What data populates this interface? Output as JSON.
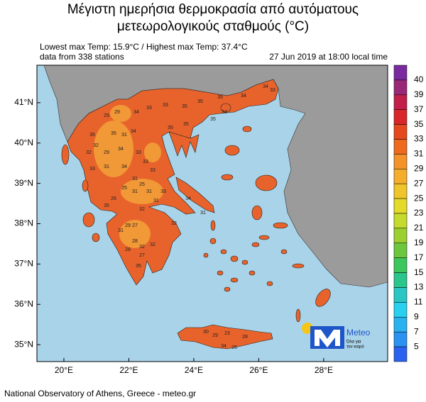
{
  "title": [
    "Μέγιστη ημερήσια θερμοκρασία από αυτόματους",
    "μετεωρολογικούς σταθμούς (°C)"
  ],
  "info": {
    "extremes": "Lowest max Temp: 15.9°C / Highest max Temp: 37.4°C",
    "stations": "data from 338 stations",
    "time": "27 Jun 2019 at 18:00 local time"
  },
  "map": {
    "lonlim": [
      19.17,
      29.97
    ],
    "latlim": [
      34.58,
      41.93
    ],
    "lonticks": [
      {
        "value": 20,
        "label": "20°E"
      },
      {
        "value": 22,
        "label": "22°E"
      },
      {
        "value": 24,
        "label": "24°E"
      },
      {
        "value": 26,
        "label": "26°E"
      },
      {
        "value": 28,
        "label": "28°E"
      }
    ],
    "latticks": [
      {
        "value": 41,
        "label": "41°N"
      },
      {
        "value": 40,
        "label": "40°N"
      },
      {
        "value": 39,
        "label": "39°N"
      },
      {
        "value": 38,
        "label": "38°N"
      },
      {
        "value": 37,
        "label": "37°N"
      },
      {
        "value": 36,
        "label": "36°N"
      },
      {
        "value": 35,
        "label": "35°N"
      }
    ],
    "stations": [
      34,
      33,
      34,
      35,
      35,
      35,
      33,
      33,
      34,
      29,
      29,
      34,
      31,
      35,
      35,
      35,
      35,
      34,
      35,
      32,
      32,
      29,
      34,
      33,
      33,
      33,
      33,
      31,
      34,
      31,
      25,
      25,
      31,
      31,
      33,
      31,
      26,
      35,
      32,
      29,
      27,
      31,
      28,
      32,
      28,
      27,
      35,
      32,
      32,
      34,
      31,
      29,
      23,
      28,
      34,
      26,
      30
    ]
  },
  "colorbar": {
    "labels": [
      40,
      39,
      37,
      35,
      33,
      31,
      29,
      27,
      25,
      23,
      21,
      19,
      17,
      15,
      13,
      11,
      9,
      7,
      5
    ],
    "colors": [
      "#7a2a9e",
      "#9a2878",
      "#c21f4a",
      "#d8262a",
      "#e5471f",
      "#ee6a1c",
      "#f3932a",
      "#f5ad2c",
      "#f0c52c",
      "#e4da2a",
      "#c4da2c",
      "#9cd030",
      "#6cc63e",
      "#3cc65c",
      "#2ac68c",
      "#2ac6c4",
      "#2ad0f0",
      "#2ab2f0",
      "#2a92f0",
      "#2a62f0"
    ]
  },
  "logo": {
    "name": "Meteo",
    "tagline": [
      "Όλα για",
      "τον καιρό"
    ]
  },
  "footer": "National Observatory of Athens, Greece - meteo.gr"
}
